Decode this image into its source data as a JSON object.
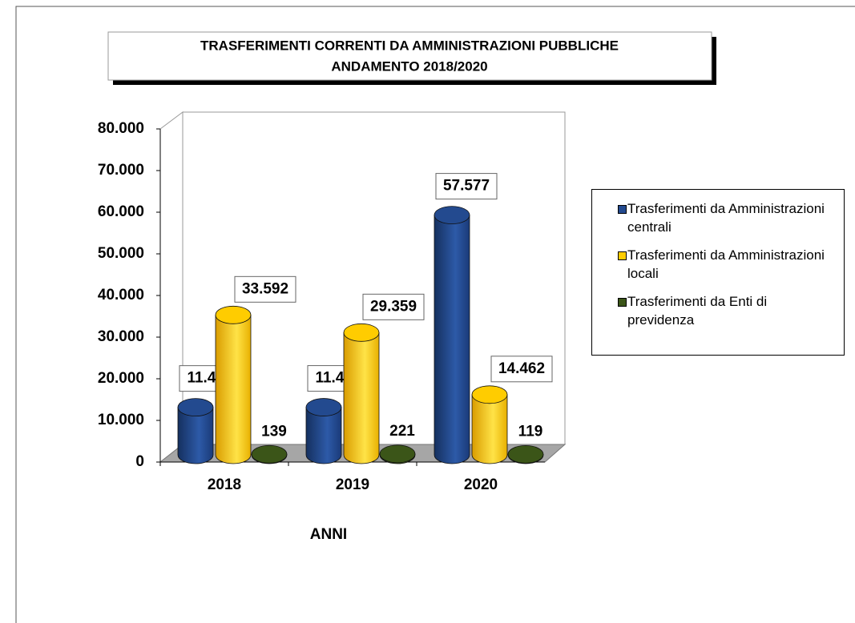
{
  "chart_data": {
    "type": "bar3d",
    "title": [
      "TRASFERIMENTI CORRENTI DA AMMINISTRAZIONI PUBBLICHE",
      "ANDAMENTO 2018/2020"
    ],
    "x_label": "ANNI",
    "categories": [
      "2018",
      "2019",
      "2020"
    ],
    "series": [
      {
        "name": "Trasferimenti da Amministrazioni centrali",
        "color": "#234a8f",
        "values": [
          11415,
          11428,
          57577
        ],
        "value_labels": [
          "11.415",
          "11.428",
          "57.577"
        ]
      },
      {
        "name": "Trasferimenti da Amministrazioni locali",
        "color": "#ffcc00",
        "values": [
          33592,
          29359,
          14462
        ],
        "value_labels": [
          "33.592",
          "29.359",
          "14.462"
        ]
      },
      {
        "name": "Trasferimenti da Enti di previdenza",
        "color": "#3b5518",
        "values": [
          139,
          221,
          119
        ],
        "value_labels": [
          "139",
          "221",
          "119"
        ]
      }
    ],
    "ylim": [
      0,
      80000
    ],
    "yticks": [
      0,
      {
        "value": 10000,
        "label": "10.000"
      },
      {
        "value": 20000,
        "label": "20.000"
      },
      {
        "value": 30000,
        "label": "30.000"
      },
      {
        "value": 40000,
        "label": "40.000"
      },
      {
        "value": 50000,
        "label": "50.000"
      },
      {
        "value": 60000,
        "label": "60.000"
      },
      {
        "value": 70000,
        "label": "70.000"
      },
      {
        "value": 80000,
        "label": "80.000"
      }
    ],
    "legend": "right"
  }
}
